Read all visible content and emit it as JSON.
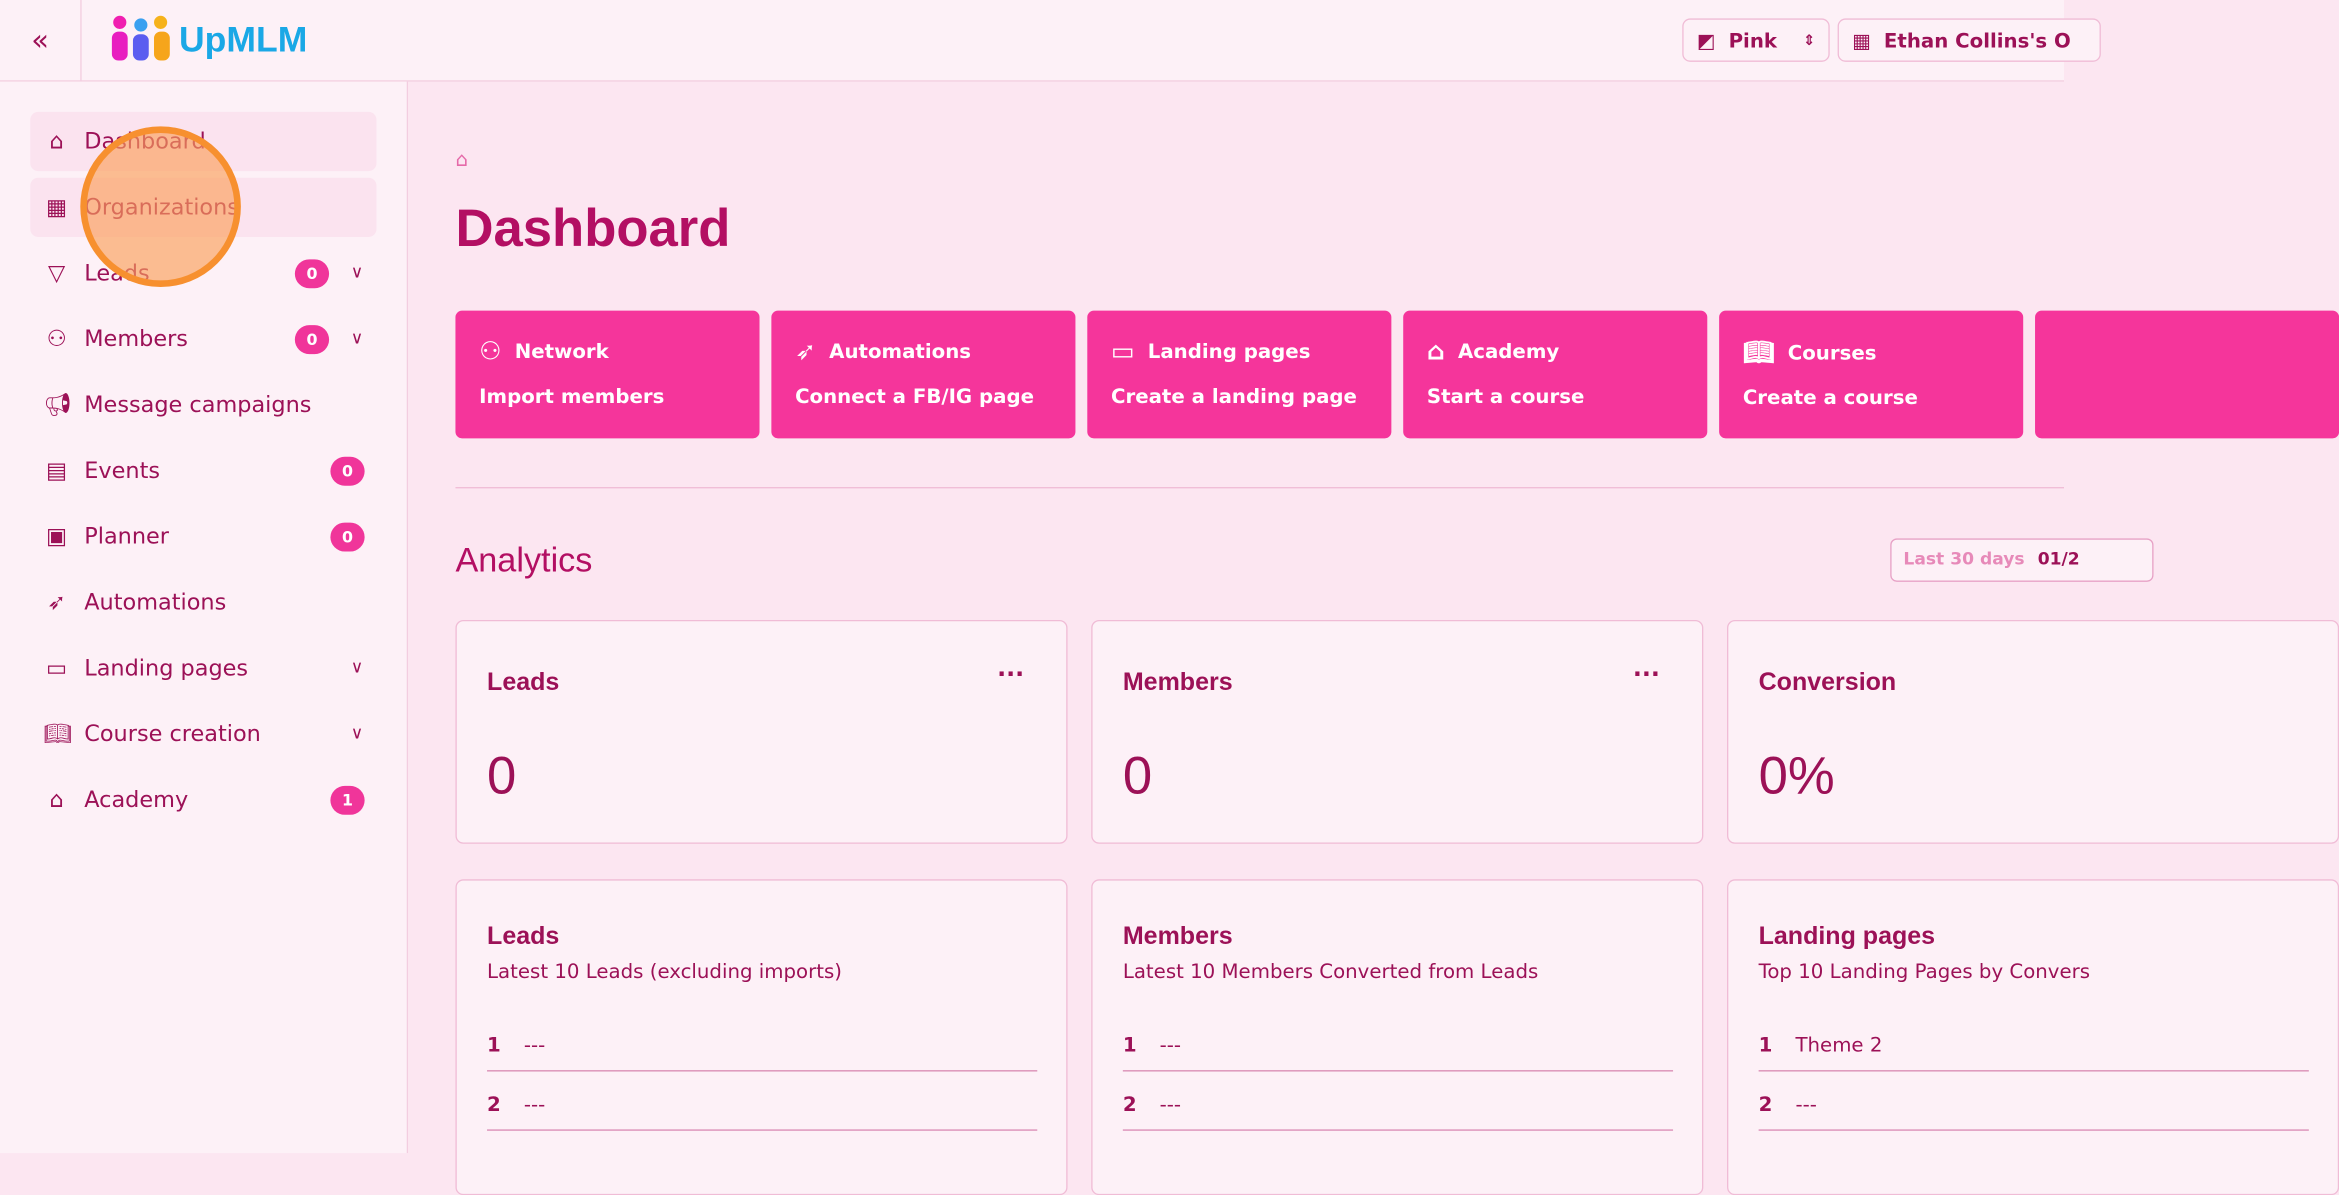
{
  "header": {
    "logo_text": "UpMLM",
    "theme_label": "Pink",
    "org_label": "Ethan Collins's O"
  },
  "sidebar": {
    "items": [
      {
        "label": "Dashboard",
        "icon": "home-icon"
      },
      {
        "label": "Organizations",
        "icon": "building-icon"
      },
      {
        "label": "Leads",
        "icon": "filter-icon",
        "badge": "0",
        "expandable": true
      },
      {
        "label": "Members",
        "icon": "users-icon",
        "badge": "0",
        "expandable": true
      },
      {
        "label": "Message campaigns",
        "icon": "megaphone-icon"
      },
      {
        "label": "Events",
        "icon": "calendar-icon",
        "badge": "0"
      },
      {
        "label": "Planner",
        "icon": "clipboard-icon",
        "badge": "0"
      },
      {
        "label": "Automations",
        "icon": "rocket-icon"
      },
      {
        "label": "Landing pages",
        "icon": "monitor-icon",
        "expandable": true
      },
      {
        "label": "Course creation",
        "icon": "book-icon",
        "expandable": true
      },
      {
        "label": "Academy",
        "icon": "graduation-cap-icon",
        "badge": "1"
      }
    ]
  },
  "main": {
    "page_title": "Dashboard",
    "tiles": [
      {
        "title": "Network",
        "action": "Import members"
      },
      {
        "title": "Automations",
        "action": "Connect a FB/IG page"
      },
      {
        "title": "Landing pages",
        "action": "Create a landing page"
      },
      {
        "title": "Academy",
        "action": "Start a course"
      },
      {
        "title": "Courses",
        "action": "Create a course"
      }
    ],
    "analytics_title": "Analytics",
    "range_label": "Last 30 days",
    "range_value": "01/2",
    "stats": [
      {
        "title": "Leads",
        "value": "0"
      },
      {
        "title": "Members",
        "value": "0"
      },
      {
        "title": "Conversion",
        "value": "0%"
      }
    ],
    "lists": [
      {
        "title": "Leads",
        "subtitle": "Latest 10 Leads (excluding imports)",
        "rows": [
          {
            "n": "1",
            "v": "---"
          },
          {
            "n": "2",
            "v": "---"
          }
        ]
      },
      {
        "title": "Members",
        "subtitle": "Latest 10 Members Converted from Leads",
        "rows": [
          {
            "n": "1",
            "v": "---"
          },
          {
            "n": "2",
            "v": "---"
          }
        ]
      },
      {
        "title": "Landing pages",
        "subtitle": "Top 10 Landing Pages by Convers",
        "rows": [
          {
            "n": "1",
            "v": "Theme 2"
          },
          {
            "n": "2",
            "v": "---"
          }
        ]
      }
    ]
  },
  "colors": {
    "accent": "#f5359b",
    "text": "#9c1157",
    "background": "#fce6f1"
  }
}
